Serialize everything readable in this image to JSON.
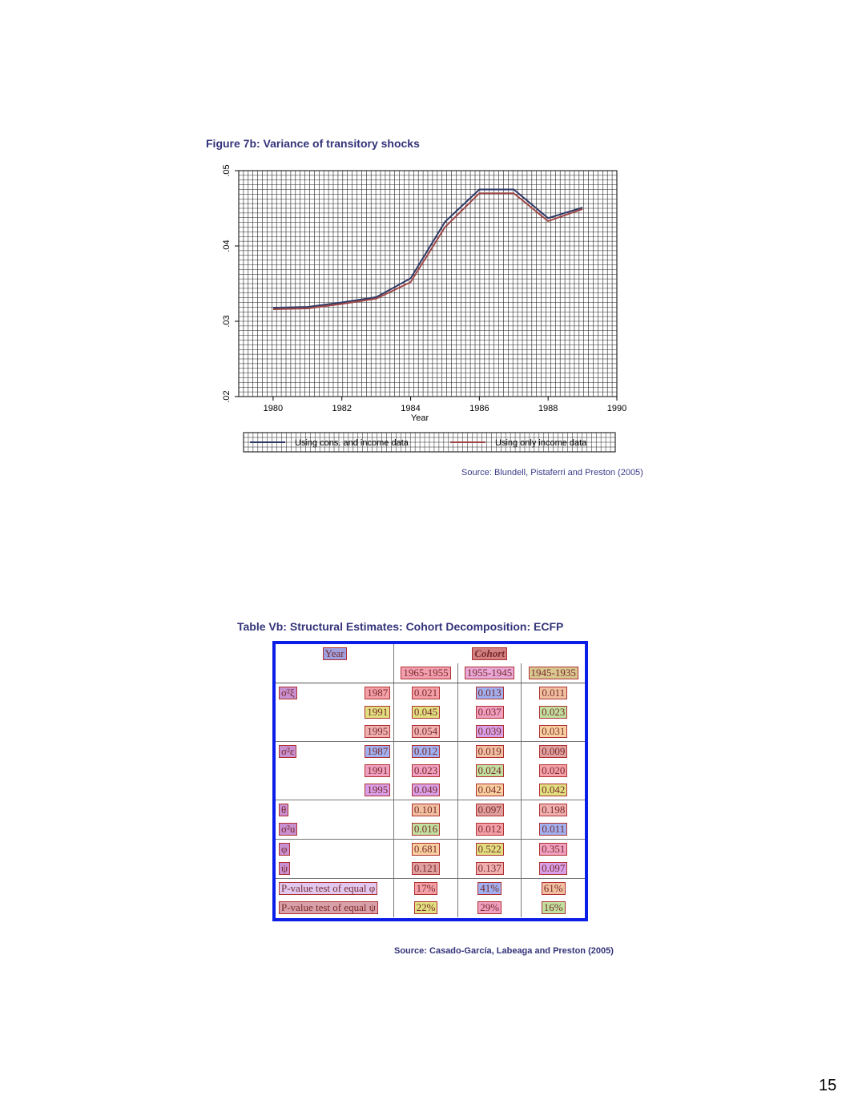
{
  "figure": {
    "title": "Figure 7b: Variance of transitory shocks",
    "source": "Source: Blundell, Pistaferri and Preston (2005)"
  },
  "chart_data": {
    "type": "line",
    "title": "Figure 7b: Variance of transitory shocks",
    "xlabel": "Year",
    "ylabel": "",
    "xlim": [
      1979,
      1990
    ],
    "ylim": [
      0.02,
      0.05
    ],
    "x_ticks": [
      "1980",
      "1982",
      "1984",
      "1986",
      "1988",
      "1990"
    ],
    "y_ticks": [
      ".02",
      ".03",
      ".04",
      ".05"
    ],
    "grid": true,
    "legend": "bottom",
    "x": [
      1980,
      1981,
      1982,
      1983,
      1984,
      1985,
      1986,
      1987,
      1988,
      1989
    ],
    "series": [
      {
        "name": "Using cons. and income data",
        "color": "#2e3a66",
        "values": [
          0.0318,
          0.0319,
          0.0325,
          0.0332,
          0.0357,
          0.0432,
          0.0475,
          0.0475,
          0.0437,
          0.0451
        ]
      },
      {
        "name": "Using only income data",
        "color": "#a04848",
        "values": [
          0.0316,
          0.0317,
          0.0323,
          0.033,
          0.0352,
          0.0425,
          0.047,
          0.047,
          0.0433,
          0.0449
        ]
      }
    ]
  },
  "table": {
    "title": "Table Vb: Structural Estimates: Cohort Decomposition: ECFP",
    "year_header": "Year",
    "cohort_header": "Cohort",
    "cohorts": [
      "1965-1955",
      "1955-1945",
      "1945-1935"
    ],
    "rows": [
      {
        "label": "σ²ξ",
        "year": "1987",
        "values": [
          "0.021",
          "0.013",
          "0.011"
        ]
      },
      {
        "label": "",
        "year": "1991",
        "values": [
          "0.045",
          "0.037",
          "0.023"
        ]
      },
      {
        "label": "",
        "year": "1995",
        "values": [
          "0.054",
          "0.039",
          "0.031"
        ]
      },
      {
        "label": "σ²ε",
        "year": "1987",
        "values": [
          "0.012",
          "0.019",
          "0.009"
        ]
      },
      {
        "label": "",
        "year": "1991",
        "values": [
          "0.023",
          "0.024",
          "0.020"
        ]
      },
      {
        "label": "",
        "year": "1995",
        "values": [
          "0.049",
          "0.042",
          "0.042"
        ]
      },
      {
        "label": "θ",
        "year": "",
        "values": [
          "0.101",
          "0.097",
          "0.198"
        ]
      },
      {
        "label": "σ²u",
        "year": "",
        "values": [
          "0.016",
          "0.012",
          "0.011"
        ]
      },
      {
        "label": "φ",
        "year": "",
        "values": [
          "0.681",
          "0.522",
          "0.351"
        ]
      },
      {
        "label": "ψ",
        "year": "",
        "values": [
          "0.121",
          "0.137",
          "0.097"
        ]
      },
      {
        "label": "P-value test of equal φ",
        "year": "",
        "values": [
          "17%",
          "41%",
          "61%"
        ]
      },
      {
        "label": "P-value test of equal ψ",
        "year": "",
        "values": [
          "22%",
          "29%",
          "16%"
        ]
      }
    ],
    "source": "Source: Casado-García, Labeaga  and Preston (2005)"
  },
  "page_number": "15"
}
